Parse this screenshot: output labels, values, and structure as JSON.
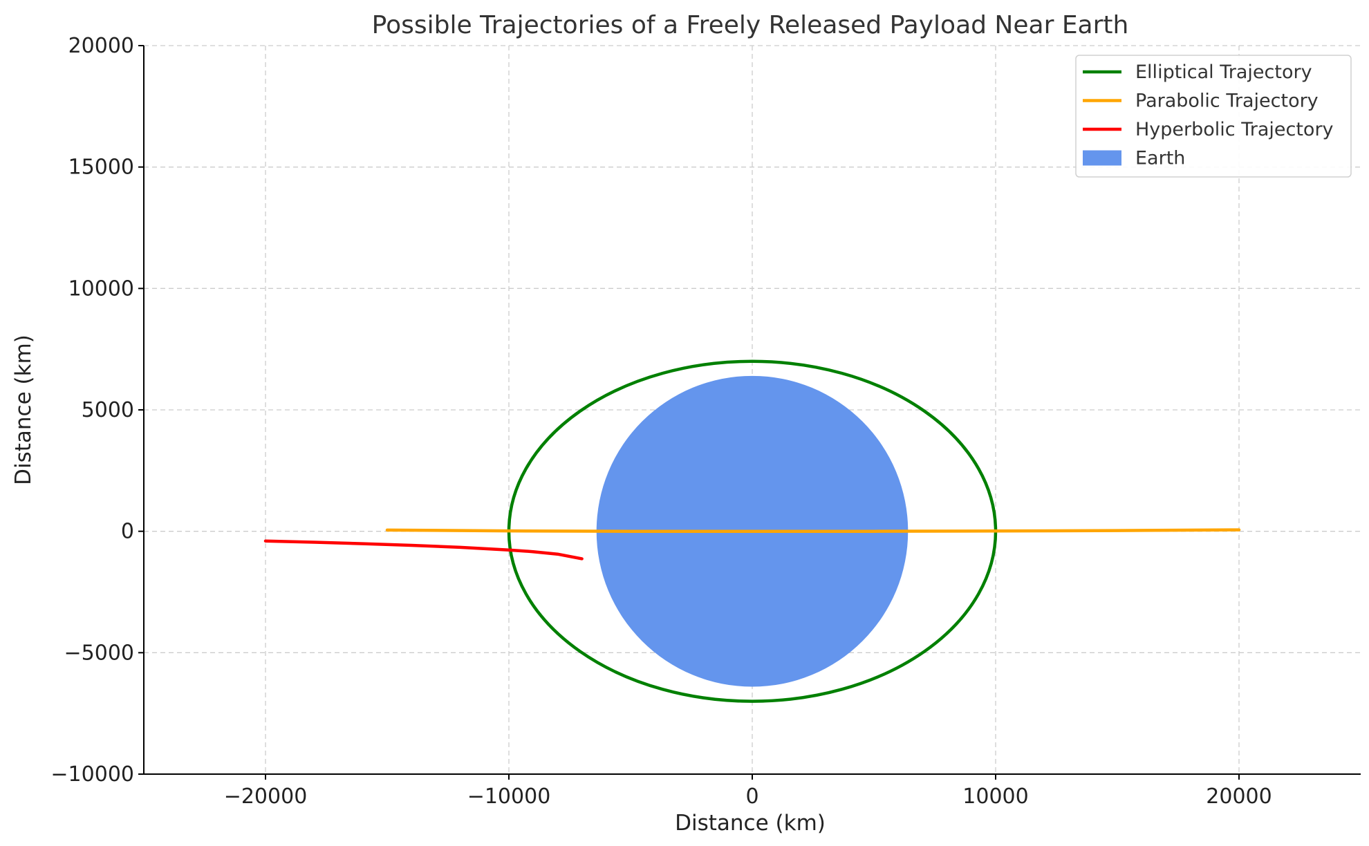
{
  "chart_data": {
    "type": "line",
    "title": "Possible Trajectories of a Freely Released Payload Near Earth",
    "xlabel": "Distance (km)",
    "ylabel": "Distance (km)",
    "xlim": [
      -25000,
      25000
    ],
    "ylim": [
      -10000,
      20000
    ],
    "xticks": [
      -20000,
      -10000,
      0,
      10000,
      20000
    ],
    "xtick_labels": [
      "−20000",
      "−10000",
      "0",
      "10000",
      "20000"
    ],
    "yticks": [
      -10000,
      -5000,
      0,
      5000,
      10000,
      15000,
      20000
    ],
    "ytick_labels": [
      "−10000",
      "−5000",
      "0",
      "5000",
      "10000",
      "15000",
      "20000"
    ],
    "grid": true,
    "legend_position": "top-right",
    "series": [
      {
        "name": "Elliptical Trajectory",
        "color": "#008000",
        "shape": "ellipse",
        "center": [
          0,
          0
        ],
        "semi_major_axis": 10000,
        "semi_minor_axis": 7000
      },
      {
        "name": "Parabolic Trajectory",
        "color": "#FFA500",
        "points": [
          [
            -15000,
            50
          ],
          [
            -10000,
            15
          ],
          [
            -5000,
            0
          ],
          [
            0,
            0
          ],
          [
            5000,
            0
          ],
          [
            10000,
            10
          ],
          [
            15000,
            30
          ],
          [
            20000,
            60
          ]
        ]
      },
      {
        "name": "Hyperbolic Trajectory",
        "color": "#FF0000",
        "points": [
          [
            -20000,
            -400
          ],
          [
            -18000,
            -450
          ],
          [
            -16000,
            -510
          ],
          [
            -14000,
            -580
          ],
          [
            -12000,
            -660
          ],
          [
            -10000,
            -770
          ],
          [
            -9000,
            -840
          ],
          [
            -8000,
            -940
          ],
          [
            -7000,
            -1130
          ]
        ]
      },
      {
        "name": "Earth",
        "color": "#6495ED",
        "shape": "circle",
        "center": [
          0,
          0
        ],
        "radius": 6400
      }
    ]
  }
}
